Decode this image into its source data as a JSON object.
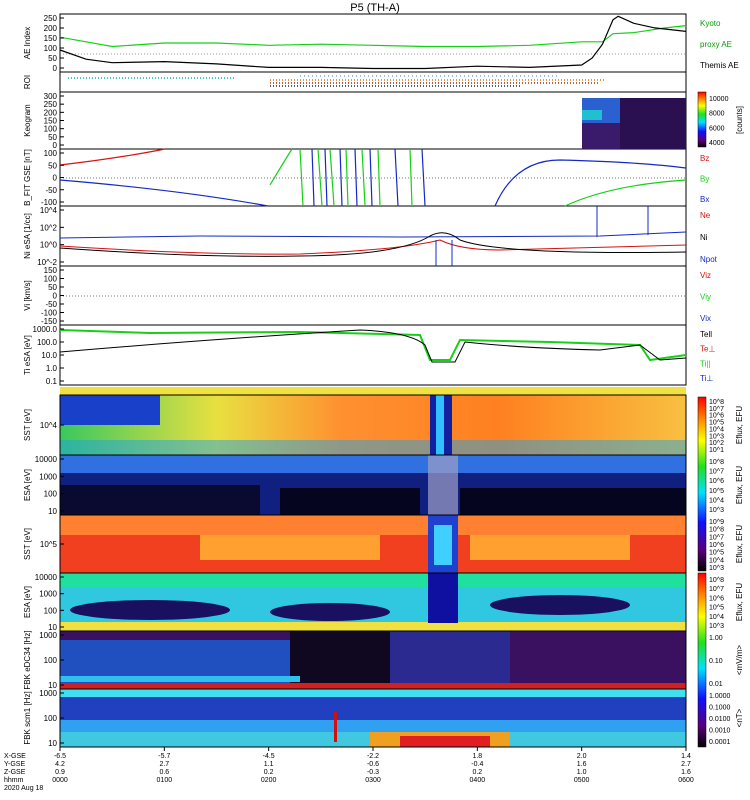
{
  "title": "P5 (TH-A)",
  "colors": {
    "kyoto": "#0a9a0a",
    "themis": "#000000",
    "red": "#d81010",
    "green": "#16d016",
    "blue": "#1428c8",
    "darkblue": "#0a1a8a"
  },
  "chart_data": [
    {
      "type": "line",
      "panel": "ae",
      "ylabel": "AE Index",
      "yticks": [
        "250",
        "200",
        "150",
        "100",
        "50",
        "0"
      ],
      "ylim": [
        0,
        250
      ],
      "legend": [
        "Kyoto",
        "proxy AE",
        "Themis AE"
      ],
      "series": [
        {
          "name": "Kyoto proxy AE",
          "x": [
            0,
            0.25,
            0.5,
            1.0,
            1.5,
            2.0,
            2.5,
            3.0,
            3.5,
            4.0,
            4.5,
            5.0,
            5.2,
            5.3,
            5.5,
            5.8,
            6.0
          ],
          "y": [
            150,
            130,
            110,
            125,
            125,
            115,
            120,
            115,
            110,
            110,
            115,
            130,
            130,
            165,
            170,
            190,
            200
          ]
        },
        {
          "name": "Themis AE",
          "x": [
            0,
            0.25,
            0.5,
            1.0,
            1.5,
            2.0,
            2.5,
            3.0,
            3.5,
            4.0,
            4.5,
            5.0,
            5.1,
            5.2,
            5.3,
            5.35,
            5.5,
            5.7,
            6.0
          ],
          "y": [
            95,
            55,
            40,
            45,
            35,
            20,
            20,
            15,
            15,
            25,
            20,
            30,
            60,
            120,
            225,
            240,
            210,
            190,
            175
          ]
        }
      ]
    },
    {
      "type": "table",
      "panel": "roi",
      "ylabel": "ROI",
      "note_rows": "region-of-interest flag bars"
    },
    {
      "type": "heatmap",
      "panel": "keogram",
      "ylabel": "Keogram",
      "yticks": [
        "300",
        "250",
        "200",
        "150",
        "100",
        "50",
        "0"
      ],
      "colorbar": {
        "ticks": [
          "10000",
          "8000",
          "6000",
          "4000"
        ],
        "label": "[counts]"
      }
    },
    {
      "type": "line",
      "panel": "bfield",
      "ylabel": "B_FIT GSE [nT]",
      "yticks": [
        "100",
        "50",
        "0",
        "-50",
        "-100"
      ],
      "ylim": [
        -100,
        100
      ],
      "legend": [
        "Bz",
        "By",
        "Bx"
      ]
    },
    {
      "type": "line",
      "panel": "density",
      "ylabel": "Ni eSA [1/cc]",
      "yticks": [
        "10^4",
        "10^2",
        "10^0",
        "10^-2"
      ],
      "legend": [
        "Ne",
        "Ni",
        "Npot"
      ]
    },
    {
      "type": "line",
      "panel": "velocity",
      "ylabel": "Vi [km/s]",
      "yticks": [
        "150",
        "100",
        "50",
        "0",
        "-50",
        "-100",
        "-150"
      ],
      "ylim": [
        -150,
        150
      ],
      "legend": [
        "Viz",
        "Viy",
        "Vix"
      ]
    },
    {
      "type": "line",
      "panel": "temperature",
      "ylabel": "Ti eSA [eV]",
      "yticks": [
        "1000.0",
        "100.0",
        "10.0",
        "1.0",
        "0.1"
      ],
      "legend": [
        "Tell",
        "Te⊥",
        "Ti||",
        "Ti⊥"
      ]
    },
    {
      "type": "heatmap",
      "panel": "sst_ion",
      "ylabel": "SST [eV]",
      "yticks": [
        "10^4"
      ],
      "colorbar": {
        "ticks": [
          "10^8",
          "10^7",
          "10^6",
          "10^5",
          "10^4",
          "10^3",
          "10^2",
          "10^1"
        ],
        "label": "Eflux, EFU"
      }
    },
    {
      "type": "heatmap",
      "panel": "esa_ion",
      "ylabel": "ESA [eV]",
      "yticks": [
        "10000",
        "1000",
        "100",
        "10"
      ],
      "colorbar": {
        "ticks": [
          "10^8",
          "10^7",
          "10^6",
          "10^5",
          "10^4",
          "10^3"
        ],
        "label": "Eflux, EFU"
      }
    },
    {
      "type": "heatmap",
      "panel": "sst_elec",
      "ylabel": "SST [eV]",
      "yticks": [
        "10^5"
      ],
      "colorbar": {
        "ticks": [
          "10^9",
          "10^8",
          "10^7",
          "10^6",
          "10^5",
          "10^4",
          "10^3"
        ],
        "label": "Eflux, EFU"
      }
    },
    {
      "type": "heatmap",
      "panel": "esa_elec",
      "ylabel": "ESA [eV]",
      "yticks": [
        "10000",
        "1000",
        "100",
        "10"
      ],
      "colorbar": {
        "ticks": [
          "10^8",
          "10^7",
          "10^6",
          "10^5",
          "10^4",
          "10^3"
        ],
        "label": "Eflux, EFU"
      }
    },
    {
      "type": "heatmap",
      "panel": "fbk_e",
      "ylabel": "FBK eDC34 [Hz]",
      "yticks": [
        "1000",
        "100",
        "10"
      ],
      "colorbar": {
        "ticks": [
          "1.00",
          "0.10",
          "0.01"
        ],
        "label": "<mV/m>"
      }
    },
    {
      "type": "heatmap",
      "panel": "fbk_b",
      "ylabel": "FBK scm1 [Hz]",
      "yticks": [
        "1000",
        "100",
        "10"
      ],
      "colorbar": {
        "ticks": [
          "1.0000",
          "0.1000",
          "0.0100",
          "0.0010",
          "0.0001"
        ],
        "label": "<nT>"
      }
    }
  ],
  "xaxis": {
    "row_labels": [
      "X-GSE",
      "Y-GSE",
      "Z-GSE",
      "hhmm",
      "2020 Aug 18"
    ],
    "columns": [
      {
        "vals": [
          "-6.5",
          "4.2",
          "0.9",
          "0000"
        ]
      },
      {
        "vals": [
          "-5.7",
          "2.7",
          "0.6",
          "0100"
        ]
      },
      {
        "vals": [
          "-4.5",
          "1.1",
          "0.2",
          "0200"
        ]
      },
      {
        "vals": [
          "-2.2",
          "-0.6",
          "-0.3",
          "0300"
        ]
      },
      {
        "vals": [
          "1.8",
          "-0.4",
          "0.2",
          "0400"
        ]
      },
      {
        "vals": [
          "2.0",
          "1.6",
          "1.0",
          "0500"
        ]
      },
      {
        "vals": [
          "1.4",
          "2.7",
          "1.6",
          "0600"
        ]
      }
    ]
  }
}
